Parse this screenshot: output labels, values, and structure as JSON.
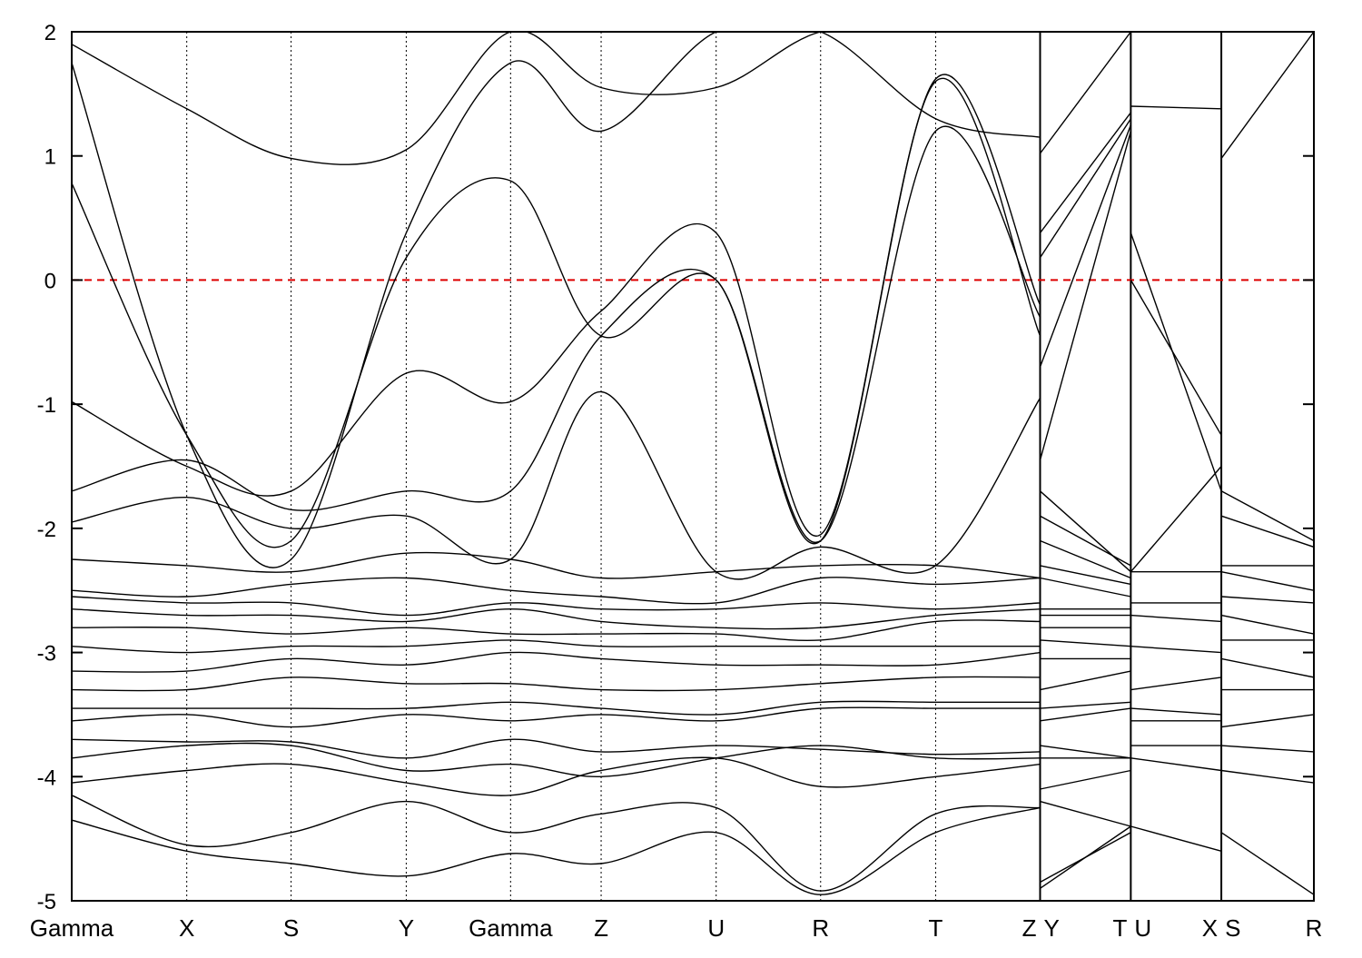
{
  "chart_data": {
    "type": "line",
    "title": "",
    "xlabel": "",
    "ylabel": "",
    "ylim": [
      -5,
      2
    ],
    "x_range": [
      0,
      1
    ],
    "y_ticks": [
      "2",
      "1",
      "0",
      "-1",
      "-2",
      "-3",
      "-4",
      "-5"
    ],
    "y_tick_values": [
      2,
      1,
      0,
      -1,
      -2,
      -3,
      -4,
      -5
    ],
    "k_points": [
      {
        "label": "Gamma",
        "x": 0.0
      },
      {
        "label": "X",
        "x": 0.0926
      },
      {
        "label": "S",
        "x": 0.1766
      },
      {
        "label": "Y",
        "x": 0.2693
      },
      {
        "label": "Gamma",
        "x": 0.3533
      },
      {
        "label": "Z",
        "x": 0.4262
      },
      {
        "label": "U",
        "x": 0.5188
      },
      {
        "label": "R",
        "x": 0.6029
      },
      {
        "label": "T",
        "x": 0.6955
      },
      {
        "label": "Z",
        "x": 0.7796
      },
      {
        "label": "Y",
        "x": 0.7796
      },
      {
        "label": "T",
        "x": 0.8526
      },
      {
        "label": "U",
        "x": 0.8526
      },
      {
        "label": "X",
        "x": 0.9255
      },
      {
        "label": "S",
        "x": 0.9255
      },
      {
        "label": "R",
        "x": 1.0
      }
    ],
    "segment_breaks": [
      0.7796,
      0.8526,
      0.9255
    ],
    "fermi_level": 0,
    "fermi_color": "#dd0000",
    "band_color": "#000000",
    "grid": "vertical dotted lines at high-symmetry points",
    "legend": "none",
    "series": [
      {
        "x": [
          0.0,
          0.0926,
          0.1766,
          0.2693,
          0.3533,
          0.4262,
          0.5188,
          0.6029,
          0.6955,
          0.7796
        ],
        "y": [
          -4.35,
          -4.6,
          -4.7,
          -4.8,
          -4.62,
          -4.7,
          -4.45,
          -4.95,
          -4.45,
          -4.25
        ]
      },
      {
        "x": [
          0.0,
          0.0926,
          0.1766,
          0.2693,
          0.3533,
          0.4262,
          0.5188,
          0.6029,
          0.6955,
          0.7796
        ],
        "y": [
          -4.15,
          -4.55,
          -4.45,
          -4.2,
          -4.45,
          -4.3,
          -4.25,
          -4.92,
          -4.3,
          -4.25
        ]
      },
      {
        "x": [
          0.0,
          0.0926,
          0.1766,
          0.2693,
          0.3533,
          0.4262,
          0.5188,
          0.6029,
          0.6955,
          0.7796
        ],
        "y": [
          -4.05,
          -3.95,
          -3.9,
          -4.05,
          -4.15,
          -3.95,
          -3.85,
          -4.08,
          -4.0,
          -3.9
        ]
      },
      {
        "x": [
          0.0,
          0.0926,
          0.1766,
          0.2693,
          0.3533,
          0.4262,
          0.5188,
          0.6029,
          0.6955,
          0.7796
        ],
        "y": [
          -3.85,
          -3.75,
          -3.75,
          -3.95,
          -3.9,
          -4.0,
          -3.85,
          -3.75,
          -3.85,
          -3.85
        ]
      },
      {
        "x": [
          0.0,
          0.0926,
          0.1766,
          0.2693,
          0.3533,
          0.4262,
          0.5188,
          0.6029,
          0.6955,
          0.7796
        ],
        "y": [
          -3.7,
          -3.72,
          -3.72,
          -3.85,
          -3.7,
          -3.8,
          -3.75,
          -3.78,
          -3.82,
          -3.8
        ]
      },
      {
        "x": [
          0.0,
          0.0926,
          0.1766,
          0.2693,
          0.3533,
          0.4262,
          0.5188,
          0.6029,
          0.6955,
          0.7796
        ],
        "y": [
          -3.55,
          -3.5,
          -3.6,
          -3.5,
          -3.55,
          -3.5,
          -3.55,
          -3.45,
          -3.45,
          -3.45
        ]
      },
      {
        "x": [
          0.0,
          0.0926,
          0.1766,
          0.2693,
          0.3533,
          0.4262,
          0.5188,
          0.6029,
          0.6955,
          0.7796
        ],
        "y": [
          -3.45,
          -3.45,
          -3.45,
          -3.45,
          -3.4,
          -3.45,
          -3.5,
          -3.4,
          -3.4,
          -3.4
        ]
      },
      {
        "x": [
          0.0,
          0.0926,
          0.1766,
          0.2693,
          0.3533,
          0.4262,
          0.5188,
          0.6029,
          0.6955,
          0.7796
        ],
        "y": [
          -3.3,
          -3.3,
          -3.2,
          -3.25,
          -3.25,
          -3.3,
          -3.3,
          -3.25,
          -3.2,
          -3.2
        ]
      },
      {
        "x": [
          0.0,
          0.0926,
          0.1766,
          0.2693,
          0.3533,
          0.4262,
          0.5188,
          0.6029,
          0.6955,
          0.7796
        ],
        "y": [
          -3.15,
          -3.15,
          -3.05,
          -3.1,
          -3.0,
          -3.05,
          -3.1,
          -3.1,
          -3.1,
          -3.0
        ]
      },
      {
        "x": [
          0.0,
          0.0926,
          0.1766,
          0.2693,
          0.3533,
          0.4262,
          0.5188,
          0.6029,
          0.6955,
          0.7796
        ],
        "y": [
          -2.95,
          -3.0,
          -2.95,
          -2.95,
          -2.9,
          -2.95,
          -2.95,
          -2.95,
          -2.95,
          -2.95
        ]
      },
      {
        "x": [
          0.0,
          0.0926,
          0.1766,
          0.2693,
          0.3533,
          0.4262,
          0.5188,
          0.6029,
          0.6955,
          0.7796
        ],
        "y": [
          -2.8,
          -2.8,
          -2.85,
          -2.8,
          -2.85,
          -2.85,
          -2.85,
          -2.9,
          -2.75,
          -2.75
        ]
      },
      {
        "x": [
          0.0,
          0.0926,
          0.1766,
          0.2693,
          0.3533,
          0.4262,
          0.5188,
          0.6029,
          0.6955,
          0.7796
        ],
        "y": [
          -2.65,
          -2.7,
          -2.7,
          -2.75,
          -2.65,
          -2.75,
          -2.8,
          -2.8,
          -2.7,
          -2.65
        ]
      },
      {
        "x": [
          0.0,
          0.0926,
          0.1766,
          0.2693,
          0.3533,
          0.4262,
          0.5188,
          0.6029,
          0.6955,
          0.7796
        ],
        "y": [
          -2.55,
          -2.6,
          -2.6,
          -2.7,
          -2.6,
          -2.65,
          -2.65,
          -2.6,
          -2.65,
          -2.6
        ]
      },
      {
        "x": [
          0.0,
          0.0926,
          0.1766,
          0.2693,
          0.3533,
          0.4262,
          0.5188,
          0.6029,
          0.6955,
          0.7796
        ],
        "y": [
          -2.5,
          -2.55,
          -2.45,
          -2.4,
          -2.5,
          -2.55,
          -2.6,
          -2.4,
          -2.45,
          -2.4
        ]
      },
      {
        "x": [
          0.0,
          0.0926,
          0.1766,
          0.2693,
          0.3533,
          0.4262,
          0.5188,
          0.6029,
          0.6955,
          0.7796
        ],
        "y": [
          -2.25,
          -2.3,
          -2.35,
          -2.2,
          -2.25,
          -2.4,
          -2.35,
          -2.3,
          -2.3,
          -2.4
        ]
      },
      {
        "x": [
          0.0,
          0.0926,
          0.1766,
          0.2693,
          0.3533,
          0.4262,
          0.5188,
          0.6029,
          0.6955,
          0.7796
        ],
        "y": [
          -1.95,
          -1.75,
          -2.0,
          -1.9,
          -2.25,
          -0.9,
          -2.35,
          -2.15,
          -2.3,
          -0.95
        ]
      },
      {
        "x": [
          0.0,
          0.0926,
          0.1766,
          0.2693,
          0.3533,
          0.4262,
          0.5188,
          0.6029,
          0.6955,
          0.7796
        ],
        "y": [
          -1.7,
          -1.45,
          -1.85,
          -1.7,
          -1.7,
          -0.45,
          -0.0,
          -2.1,
          1.2,
          -0.3
        ]
      },
      {
        "x": [
          0.0,
          0.0926,
          0.1766,
          0.2693,
          0.3533,
          0.4262,
          0.5188,
          0.6029,
          0.6955,
          0.7796
        ],
        "y": [
          -0.98,
          -1.5,
          -1.7,
          -0.75,
          -0.98,
          -0.25,
          0.38,
          -2.05,
          1.6,
          -0.45
        ]
      },
      {
        "x": [
          0.0,
          0.0926,
          0.1766,
          0.2693,
          0.3533,
          0.4262,
          0.5188,
          0.6029,
          0.6955,
          0.7796
        ],
        "y": [
          0.78,
          -1.25,
          -2.1,
          0.18,
          0.8,
          -0.45,
          -0.0,
          -2.1,
          1.62,
          -0.2
        ]
      },
      {
        "x": [
          0.0,
          0.0926,
          0.1766,
          0.2693,
          0.3533,
          0.4262,
          0.5188,
          0.6029,
          0.6955,
          0.7796
        ],
        "y": [
          1.75,
          -1.25,
          -2.25,
          0.38,
          1.75,
          1.2,
          2.0,
          2.0,
          1.3,
          1.15
        ]
      },
      {
        "x": [
          0.0,
          0.0926,
          0.1766,
          0.2693,
          0.3533,
          0.4262,
          0.5188,
          0.6029,
          0.6955,
          0.7796
        ],
        "y": [
          1.9,
          1.38,
          0.98,
          1.05,
          2.0,
          1.55,
          1.55,
          2.0,
          2.0,
          2.0
        ]
      },
      {
        "x": [
          0.7796,
          0.8526
        ],
        "y": [
          -4.9,
          -4.4
        ]
      },
      {
        "x": [
          0.7796,
          0.8526
        ],
        "y": [
          -4.85,
          -4.45
        ]
      },
      {
        "x": [
          0.7796,
          0.8526
        ],
        "y": [
          -4.2,
          -4.4
        ]
      },
      {
        "x": [
          0.7796,
          0.8526
        ],
        "y": [
          -4.1,
          -3.95
        ]
      },
      {
        "x": [
          0.7796,
          0.8526
        ],
        "y": [
          -3.85,
          -3.85
        ]
      },
      {
        "x": [
          0.7796,
          0.8526
        ],
        "y": [
          -3.75,
          -3.85
        ]
      },
      {
        "x": [
          0.7796,
          0.8526
        ],
        "y": [
          -3.55,
          -3.45
        ]
      },
      {
        "x": [
          0.7796,
          0.8526
        ],
        "y": [
          -3.45,
          -3.4
        ]
      },
      {
        "x": [
          0.7796,
          0.8526
        ],
        "y": [
          -3.3,
          -3.15
        ]
      },
      {
        "x": [
          0.7796,
          0.8526
        ],
        "y": [
          -3.05,
          -3.05
        ]
      },
      {
        "x": [
          0.7796,
          0.8526
        ],
        "y": [
          -2.9,
          -2.95
        ]
      },
      {
        "x": [
          0.7796,
          0.8526
        ],
        "y": [
          -2.8,
          -2.8
        ]
      },
      {
        "x": [
          0.7796,
          0.8526
        ],
        "y": [
          -2.7,
          -2.7
        ]
      },
      {
        "x": [
          0.7796,
          0.8526
        ],
        "y": [
          -2.65,
          -2.65
        ]
      },
      {
        "x": [
          0.7796,
          0.8526
        ],
        "y": [
          -2.4,
          -2.55
        ]
      },
      {
        "x": [
          0.7796,
          0.8526
        ],
        "y": [
          -2.3,
          -2.45
        ]
      },
      {
        "x": [
          0.7796,
          0.8526
        ],
        "y": [
          -2.1,
          -2.4
        ]
      },
      {
        "x": [
          0.7796,
          0.8526
        ],
        "y": [
          -1.9,
          -2.3
        ]
      },
      {
        "x": [
          0.7796,
          0.8526
        ],
        "y": [
          -1.7,
          -2.35
        ]
      },
      {
        "x": [
          0.7796,
          0.8526
        ],
        "y": [
          -1.45,
          1.2
        ]
      },
      {
        "x": [
          0.7796,
          0.8526
        ],
        "y": [
          -0.7,
          1.25
        ]
      },
      {
        "x": [
          0.7796,
          0.8526
        ],
        "y": [
          0.18,
          1.3
        ]
      },
      {
        "x": [
          0.7796,
          0.8526
        ],
        "y": [
          0.38,
          1.35
        ]
      },
      {
        "x": [
          0.7796,
          0.8526
        ],
        "y": [
          1.02,
          2.0
        ]
      },
      {
        "x": [
          0.8526,
          0.9255
        ],
        "y": [
          -4.4,
          -4.6
        ]
      },
      {
        "x": [
          0.8526,
          0.9255
        ],
        "y": [
          -3.85,
          -3.95
        ]
      },
      {
        "x": [
          0.8526,
          0.9255
        ],
        "y": [
          -3.75,
          -3.75
        ]
      },
      {
        "x": [
          0.8526,
          0.9255
        ],
        "y": [
          -3.55,
          -3.55
        ]
      },
      {
        "x": [
          0.8526,
          0.9255
        ],
        "y": [
          -3.45,
          -3.5
        ]
      },
      {
        "x": [
          0.8526,
          0.9255
        ],
        "y": [
          -3.3,
          -3.2
        ]
      },
      {
        "x": [
          0.8526,
          0.9255
        ],
        "y": [
          -2.95,
          -3.0
        ]
      },
      {
        "x": [
          0.8526,
          0.9255
        ],
        "y": [
          -2.7,
          -2.75
        ]
      },
      {
        "x": [
          0.8526,
          0.9255
        ],
        "y": [
          -2.6,
          -2.6
        ]
      },
      {
        "x": [
          0.8526,
          0.9255
        ],
        "y": [
          -2.35,
          -2.35
        ]
      },
      {
        "x": [
          0.8526,
          0.9255
        ],
        "y": [
          -2.35,
          -1.5
        ]
      },
      {
        "x": [
          0.8526,
          0.9255
        ],
        "y": [
          -0.0,
          -1.25
        ]
      },
      {
        "x": [
          0.8526,
          0.9255
        ],
        "y": [
          0.38,
          -1.7
        ]
      },
      {
        "x": [
          0.8526,
          0.9255
        ],
        "y": [
          1.4,
          1.38
        ]
      },
      {
        "x": [
          0.9255,
          1.0
        ],
        "y": [
          -4.45,
          -4.95
        ]
      },
      {
        "x": [
          0.9255,
          1.0
        ],
        "y": [
          -3.95,
          -4.05
        ]
      },
      {
        "x": [
          0.9255,
          1.0
        ],
        "y": [
          -3.75,
          -3.8
        ]
      },
      {
        "x": [
          0.9255,
          1.0
        ],
        "y": [
          -3.6,
          -3.5
        ]
      },
      {
        "x": [
          0.9255,
          1.0
        ],
        "y": [
          -3.3,
          -3.3
        ]
      },
      {
        "x": [
          0.9255,
          1.0
        ],
        "y": [
          -3.05,
          -3.2
        ]
      },
      {
        "x": [
          0.9255,
          1.0
        ],
        "y": [
          -2.9,
          -2.9
        ]
      },
      {
        "x": [
          0.9255,
          1.0
        ],
        "y": [
          -2.7,
          -2.85
        ]
      },
      {
        "x": [
          0.9255,
          1.0
        ],
        "y": [
          -2.55,
          -2.6
        ]
      },
      {
        "x": [
          0.9255,
          1.0
        ],
        "y": [
          -2.35,
          -2.5
        ]
      },
      {
        "x": [
          0.9255,
          1.0
        ],
        "y": [
          -2.3,
          -2.3
        ]
      },
      {
        "x": [
          0.9255,
          1.0
        ],
        "y": [
          -1.9,
          -2.15
        ]
      },
      {
        "x": [
          0.9255,
          1.0
        ],
        "y": [
          -1.7,
          -2.1
        ]
      },
      {
        "x": [
          0.9255,
          1.0
        ],
        "y": [
          0.98,
          2.0
        ]
      }
    ]
  }
}
